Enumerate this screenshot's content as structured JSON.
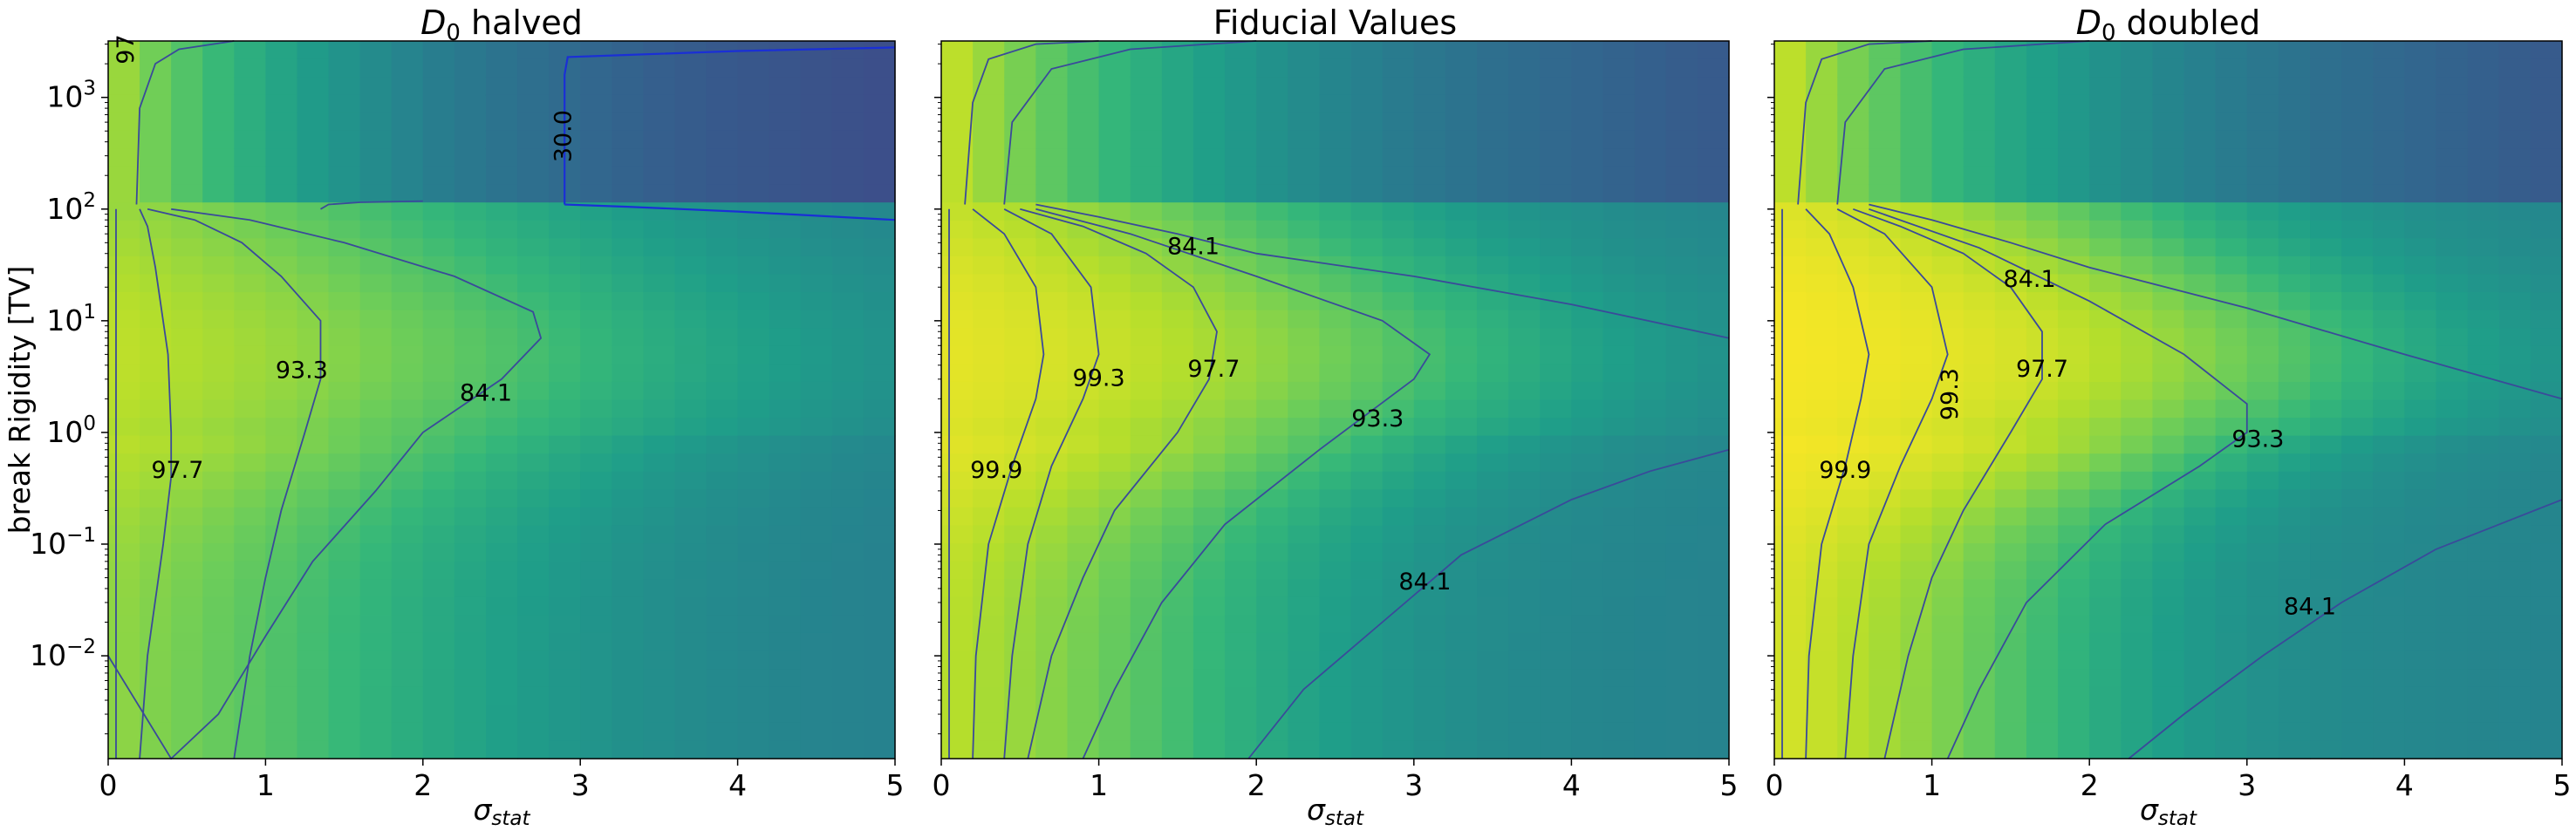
{
  "chart_data": [
    {
      "type": "heatmap",
      "title": {
        "base": "D",
        "sub": "0",
        "rest": " halved"
      },
      "xlabel": {
        "base": "σ",
        "sub": "stat"
      },
      "ylabel": "break Rigidity [TV]",
      "x_range": [
        0,
        5
      ],
      "y_range": [
        0.0012,
        3200
      ],
      "y_scale": "log",
      "x_ticks": [
        "0",
        "1",
        "2",
        "3",
        "4",
        "5"
      ],
      "y_ticks": [
        {
          "base": "10",
          "exp": "3"
        },
        {
          "base": "10",
          "exp": "2"
        },
        {
          "base": "10",
          "exp": "1"
        },
        {
          "base": "10",
          "exp": "0"
        },
        {
          "base": "10",
          "exp": "−1"
        },
        {
          "base": "10",
          "exp": "−2"
        }
      ],
      "colormap": "viridis",
      "field": {
        "xc": 2.75,
        "fall_low": 1.15,
        "fall_high": 1.35,
        "fall_top": 2.0,
        "break": 100,
        "top_max": 0.7,
        "base": 0.97
      },
      "contours": [
        {
          "level": "99.9",
          "x": [
            0.05,
            0.05
          ],
          "y": [
            0.0012,
            100
          ]
        },
        {
          "level": "97.7",
          "x": [
            0.2,
            0.25,
            0.35,
            0.4,
            0.4,
            0.38,
            0.3,
            0.25,
            0.2
          ],
          "y": [
            0.0012,
            0.01,
            0.1,
            0.4,
            1,
            5,
            30,
            70,
            100
          ]
        },
        {
          "level": "93.3",
          "x": [
            0.8,
            0.9,
            1.0,
            1.1,
            1.25,
            1.35,
            1.35,
            1.1,
            0.85,
            0.55,
            0.25
          ],
          "y": [
            0.0012,
            0.01,
            0.05,
            0.2,
            1,
            3,
            10,
            25,
            50,
            80,
            100
          ]
        },
        {
          "level": "84.1",
          "x": [
            0.0,
            0.4,
            0.7,
            1.0,
            1.3,
            1.7,
            2.0,
            2.5,
            2.75,
            2.7,
            2.2,
            1.5,
            0.9,
            0.4
          ],
          "y": [
            0.01,
            0.0012,
            0.003,
            0.015,
            0.07,
            0.3,
            1,
            3,
            7,
            12,
            25,
            50,
            80,
            100
          ]
        },
        {
          "level": "30.0",
          "x": [
            2.9,
            2.9,
            2.92,
            3.3,
            4.0,
            5.0
          ],
          "y": [
            110,
            1600,
            2300,
            2400,
            2600,
            2800
          ]
        },
        {
          "level": "30.0",
          "x": [
            2.9,
            3.3,
            4.0,
            5.0
          ],
          "y": [
            110,
            105,
            95,
            80
          ]
        },
        {
          "level": "97",
          "x": [
            0.18,
            0.2,
            0.3,
            0.45,
            0.8
          ],
          "y": [
            110,
            800,
            2000,
            2700,
            3200
          ]
        },
        {
          "level": "84.1",
          "x": [
            1.35,
            1.4,
            1.6,
            2.0
          ],
          "y": [
            100,
            110,
            115,
            118
          ]
        }
      ],
      "labels": [
        {
          "text": "93.3",
          "x": 1.23,
          "y": 3.5,
          "rot": 0
        },
        {
          "text": "84.1",
          "x": 2.4,
          "y": 2.2,
          "rot": 0
        },
        {
          "text": "97.7",
          "x": 0.44,
          "y": 0.45,
          "rot": 0
        },
        {
          "text": "30.0",
          "x": 2.9,
          "y": 450,
          "rot": -90
        },
        {
          "text": "97",
          "x": 0.12,
          "y": 2700,
          "rot": -90
        }
      ]
    },
    {
      "type": "heatmap",
      "title": {
        "base": "Fiducial Values",
        "sub": "",
        "rest": ""
      },
      "xlabel": {
        "base": "σ",
        "sub": "stat"
      },
      "ylabel": "",
      "x_range": [
        0,
        5
      ],
      "y_range": [
        0.0012,
        3200
      ],
      "y_scale": "log",
      "x_ticks": [
        "0",
        "1",
        "2",
        "3",
        "4",
        "5"
      ],
      "y_ticks": [],
      "colormap": "viridis",
      "field": {
        "xc": 3.0,
        "fall_low": 0.85,
        "fall_high": 1.0,
        "fall_top": 2.5,
        "break": 100,
        "top_max": 0.75,
        "base": 0.99
      },
      "contours": [
        {
          "level": "99.9",
          "x": [
            0.05,
            0.05
          ],
          "y": [
            0.0012,
            100
          ]
        },
        {
          "level": "99.9",
          "x": [
            0.2,
            0.22,
            0.3,
            0.45,
            0.6,
            0.65,
            0.6,
            0.4,
            0.2
          ],
          "y": [
            0.0012,
            0.01,
            0.1,
            0.5,
            2,
            5,
            20,
            60,
            100
          ]
        },
        {
          "level": "99.3",
          "x": [
            0.4,
            0.45,
            0.55,
            0.7,
            0.9,
            1.0,
            0.95,
            0.7,
            0.4
          ],
          "y": [
            0.0012,
            0.01,
            0.1,
            0.5,
            2,
            5,
            20,
            60,
            100
          ]
        },
        {
          "level": "97.7",
          "x": [
            0.55,
            0.7,
            0.9,
            1.1,
            1.5,
            1.7,
            1.75,
            1.6,
            1.3,
            0.9,
            0.5
          ],
          "y": [
            0.0012,
            0.01,
            0.05,
            0.2,
            1,
            3,
            8,
            20,
            40,
            70,
            100
          ]
        },
        {
          "level": "93.3",
          "x": [
            0.9,
            1.1,
            1.4,
            1.8,
            2.4,
            3.0,
            3.1,
            2.8,
            2.0,
            1.2,
            0.6
          ],
          "y": [
            0.0012,
            0.005,
            0.03,
            0.15,
            0.7,
            3,
            5,
            10,
            25,
            60,
            100
          ]
        },
        {
          "level": "84.1",
          "x": [
            1.95,
            2.3,
            2.8,
            3.3,
            4.0,
            4.5,
            5.0
          ],
          "y": [
            0.0012,
            0.005,
            0.02,
            0.08,
            0.25,
            0.45,
            0.7
          ]
        },
        {
          "level": "84.1",
          "x": [
            0.6,
            1.0,
            1.5,
            2.0,
            3.0,
            4.0,
            5.0
          ],
          "y": [
            110,
            85,
            60,
            40,
            25,
            14,
            7
          ]
        },
        {
          "level": "97",
          "x": [
            0.4,
            0.45,
            0.7,
            1.2,
            2.0
          ],
          "y": [
            110,
            600,
            1800,
            2700,
            3200
          ]
        },
        {
          "level": "97",
          "x": [
            0.15,
            0.2,
            0.3,
            0.6,
            1.0
          ],
          "y": [
            110,
            900,
            2200,
            3000,
            3200
          ]
        }
      ],
      "labels": [
        {
          "text": "84.1",
          "x": 1.6,
          "y": 45,
          "rot": 0
        },
        {
          "text": "99.3",
          "x": 1.0,
          "y": 3.0,
          "rot": 0
        },
        {
          "text": "97.7",
          "x": 1.73,
          "y": 3.6,
          "rot": 0
        },
        {
          "text": "93.3",
          "x": 2.77,
          "y": 1.3,
          "rot": 0
        },
        {
          "text": "99.9",
          "x": 0.35,
          "y": 0.45,
          "rot": 0
        },
        {
          "text": "84.1",
          "x": 3.07,
          "y": 0.045,
          "rot": 0
        }
      ]
    },
    {
      "type": "heatmap",
      "title": {
        "base": "D",
        "sub": "0",
        "rest": " doubled"
      },
      "xlabel": {
        "base": "σ",
        "sub": "stat"
      },
      "ylabel": "",
      "x_range": [
        0,
        5
      ],
      "y_range": [
        0.0012,
        3200
      ],
      "y_scale": "log",
      "x_ticks": [
        "0",
        "1",
        "2",
        "3",
        "4",
        "5"
      ],
      "y_ticks": [],
      "colormap": "viridis",
      "field": {
        "xc": 3.3,
        "fall_low": 0.7,
        "fall_high": 0.85,
        "fall_top": 2.5,
        "break": 100,
        "top_max": 0.75,
        "base": 1.0
      },
      "contours": [
        {
          "level": "99.9",
          "x": [
            0.05,
            0.05
          ],
          "y": [
            0.0012,
            100
          ]
        },
        {
          "level": "99.9",
          "x": [
            0.2,
            0.22,
            0.3,
            0.45,
            0.55,
            0.6,
            0.5,
            0.35,
            0.2
          ],
          "y": [
            0.0012,
            0.01,
            0.1,
            0.5,
            2,
            5,
            20,
            60,
            100
          ]
        },
        {
          "level": "99.3",
          "x": [
            0.45,
            0.5,
            0.6,
            0.8,
            1.0,
            1.1,
            1.0,
            0.7,
            0.4
          ],
          "y": [
            0.0012,
            0.01,
            0.1,
            0.5,
            2,
            5,
            20,
            60,
            100
          ]
        },
        {
          "level": "97.7",
          "x": [
            0.7,
            0.85,
            1.0,
            1.2,
            1.5,
            1.7,
            1.7,
            1.5,
            1.2,
            0.8,
            0.5
          ],
          "y": [
            0.0012,
            0.01,
            0.05,
            0.2,
            1,
            3,
            8,
            20,
            40,
            70,
            100
          ]
        },
        {
          "level": "93.3",
          "x": [
            1.1,
            1.3,
            1.6,
            2.1,
            2.7,
            3.0,
            3.0,
            2.6,
            2.0,
            1.3,
            0.6
          ],
          "y": [
            0.0012,
            0.005,
            0.03,
            0.15,
            0.5,
            1,
            1.8,
            5,
            15,
            45,
            100
          ]
        },
        {
          "level": "84.1",
          "x": [
            2.25,
            2.6,
            3.1,
            3.6,
            4.2,
            4.6,
            5.0
          ],
          "y": [
            0.0012,
            0.003,
            0.01,
            0.03,
            0.09,
            0.15,
            0.25
          ]
        },
        {
          "level": "84.1",
          "x": [
            0.6,
            1.0,
            1.5,
            2.0,
            3.0,
            4.0,
            5.0
          ],
          "y": [
            110,
            80,
            50,
            30,
            13,
            5,
            2
          ]
        },
        {
          "level": "97",
          "x": [
            0.4,
            0.45,
            0.7,
            1.2,
            2.0
          ],
          "y": [
            110,
            600,
            1800,
            2700,
            3200
          ]
        },
        {
          "level": "97",
          "x": [
            0.15,
            0.2,
            0.3,
            0.6,
            1.0
          ],
          "y": [
            110,
            900,
            2200,
            3000,
            3200
          ]
        }
      ],
      "labels": [
        {
          "text": "84.1",
          "x": 1.62,
          "y": 23,
          "rot": 0
        },
        {
          "text": "99.3",
          "x": 1.12,
          "y": 2.2,
          "rot": -90
        },
        {
          "text": "97.7",
          "x": 1.7,
          "y": 3.6,
          "rot": 0
        },
        {
          "text": "93.3",
          "x": 3.07,
          "y": 0.85,
          "rot": 0
        },
        {
          "text": "99.9",
          "x": 0.45,
          "y": 0.45,
          "rot": 0
        },
        {
          "text": "84.1",
          "x": 3.4,
          "y": 0.027,
          "rot": 0
        }
      ]
    }
  ]
}
